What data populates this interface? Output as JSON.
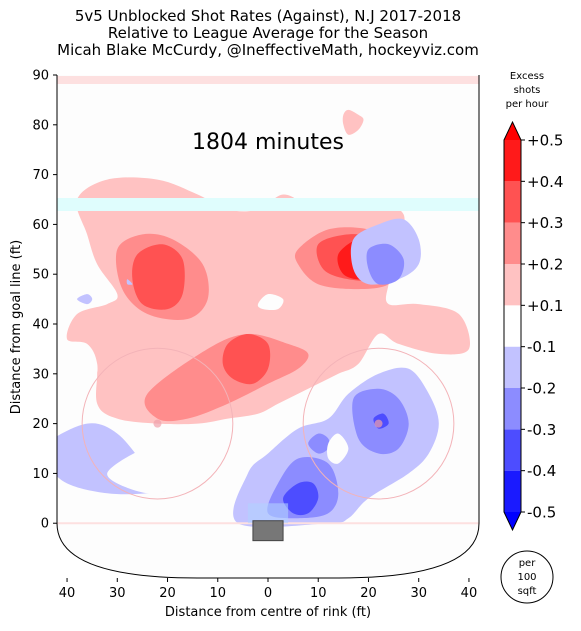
{
  "chart_data": {
    "type": "heatmap",
    "title_lines": [
      "5v5 Unblocked Shot Rates (Against), N.J 2017-2018",
      "Relative to League Average for the Season",
      "Micah Blake McCurdy, @IneffectiveMath, hockeyviz.com"
    ],
    "xlabel": "Distance from centre of rink (ft)",
    "ylabel": "Distance from goal line (ft)",
    "xlim": [
      -42,
      42
    ],
    "ylim": [
      -11,
      90
    ],
    "x_ticks": [
      -40,
      -30,
      -20,
      -10,
      0,
      10,
      20,
      30,
      40
    ],
    "x_tick_labels": [
      "40",
      "30",
      "20",
      "10",
      "0",
      "10",
      "20",
      "30",
      "40"
    ],
    "y_ticks": [
      0,
      10,
      20,
      30,
      40,
      50,
      60,
      70,
      80,
      90
    ],
    "y_tick_labels": [
      "0",
      "10",
      "20",
      "30",
      "40",
      "50",
      "60",
      "70",
      "80",
      "90"
    ],
    "annotation": "1804 minutes",
    "colorbar": {
      "title_lines": [
        "Excess",
        "shots",
        "per hour"
      ],
      "levels": [
        -0.5,
        -0.4,
        -0.3,
        -0.2,
        -0.1,
        0.1,
        0.2,
        0.3,
        0.4,
        0.5
      ],
      "tick_labels": [
        "-0.5",
        "-0.4",
        "-0.3",
        "-0.2",
        "-0.1",
        "+0.1",
        "+0.2",
        "+0.3",
        "+0.4",
        "+0.5"
      ],
      "colors": [
        "#1a1aff",
        "#4d4dff",
        "#8c8cff",
        "#c2c2ff",
        "#ffffff",
        "#ffc2c2",
        "#ff8c8c",
        "#ff5252",
        "#ff1a1a"
      ],
      "extend": "both",
      "extend_low_color": "#0000ff",
      "extend_high_color": "#ff0000"
    },
    "unit_badge_lines": [
      "per",
      "100",
      "sqft"
    ],
    "faceoff_circles": [
      {
        "x": -22,
        "y": 20,
        "r": 15
      },
      {
        "x": 22,
        "y": 20,
        "r": 15
      }
    ],
    "regions": [
      {
        "level": 0.15,
        "polygon": [
          [
            -38,
            65
          ],
          [
            -32,
            69
          ],
          [
            -22,
            69
          ],
          [
            -14,
            66
          ],
          [
            -8,
            63
          ],
          [
            -2,
            63
          ],
          [
            3,
            66
          ],
          [
            8,
            64
          ],
          [
            15,
            63
          ],
          [
            22,
            64
          ],
          [
            27,
            62
          ],
          [
            26,
            55
          ],
          [
            24,
            48
          ],
          [
            24,
            44
          ],
          [
            30,
            44
          ],
          [
            38,
            42
          ],
          [
            40,
            35
          ],
          [
            34,
            34
          ],
          [
            26,
            36
          ],
          [
            22,
            38
          ],
          [
            18,
            32
          ],
          [
            14,
            30
          ],
          [
            10,
            28
          ],
          [
            6,
            26
          ],
          [
            2,
            24
          ],
          [
            -2,
            22
          ],
          [
            -8,
            21
          ],
          [
            -14,
            20
          ],
          [
            -22,
            20
          ],
          [
            -30,
            21
          ],
          [
            -34,
            24
          ],
          [
            -34,
            32
          ],
          [
            -36,
            36
          ],
          [
            -40,
            37
          ],
          [
            -38,
            42
          ],
          [
            -32,
            44
          ],
          [
            -30,
            46
          ],
          [
            -34,
            52
          ],
          [
            -36,
            58
          ]
        ]
      },
      {
        "level": 0.15,
        "polygon": [
          [
            -26,
            26
          ],
          [
            -28,
            30
          ],
          [
            -30,
            33
          ],
          [
            -32,
            34
          ],
          [
            -34,
            30
          ],
          [
            -32,
            26
          ]
        ]
      },
      {
        "level": 0.15,
        "polygon": [
          [
            15,
            80
          ],
          [
            15,
            82
          ],
          [
            16,
            83
          ],
          [
            18,
            82
          ],
          [
            19,
            81
          ],
          [
            18,
            79
          ],
          [
            16,
            78
          ]
        ]
      },
      {
        "level": 0.25,
        "polygon": [
          [
            -30,
            55
          ],
          [
            -25,
            58
          ],
          [
            -19,
            57
          ],
          [
            -13,
            52
          ],
          [
            -12,
            45
          ],
          [
            -16,
            41
          ],
          [
            -24,
            42
          ],
          [
            -29,
            47
          ]
        ]
      },
      {
        "level": 0.25,
        "polygon": [
          [
            -24,
            26
          ],
          [
            -12,
            35
          ],
          [
            -4,
            38
          ],
          [
            4,
            36
          ],
          [
            8,
            34
          ],
          [
            6,
            31
          ],
          [
            0,
            28
          ],
          [
            -8,
            24
          ],
          [
            -16,
            21
          ],
          [
            -22,
            21
          ]
        ]
      },
      {
        "level": 0.25,
        "polygon": [
          [
            6,
            55
          ],
          [
            12,
            59
          ],
          [
            20,
            59
          ],
          [
            25,
            56
          ],
          [
            26,
            52
          ],
          [
            24,
            48
          ],
          [
            18,
            47
          ],
          [
            10,
            48
          ],
          [
            6,
            52
          ]
        ]
      },
      {
        "level": 0.35,
        "polygon": [
          [
            -26,
            54
          ],
          [
            -21,
            56
          ],
          [
            -17,
            53
          ],
          [
            -17,
            46
          ],
          [
            -20,
            43
          ],
          [
            -25,
            44
          ],
          [
            -27,
            49
          ]
        ]
      },
      {
        "level": 0.35,
        "polygon": [
          [
            -8,
            36
          ],
          [
            -4,
            38
          ],
          [
            0,
            36
          ],
          [
            0,
            31
          ],
          [
            -3,
            28
          ],
          [
            -7,
            29
          ],
          [
            -9,
            32
          ]
        ]
      },
      {
        "level": 0.35,
        "polygon": [
          [
            10,
            56
          ],
          [
            16,
            58
          ],
          [
            22,
            57
          ],
          [
            24,
            53
          ],
          [
            22,
            49
          ],
          [
            16,
            49
          ],
          [
            11,
            51
          ]
        ]
      },
      {
        "level": 0.45,
        "polygon": [
          [
            14,
            54
          ],
          [
            18,
            57
          ],
          [
            21,
            55
          ],
          [
            22,
            51
          ],
          [
            19,
            49
          ],
          [
            15,
            50
          ]
        ]
      },
      {
        "level": -0.15,
        "polygon": [
          [
            -44,
            16
          ],
          [
            -36,
            20
          ],
          [
            -30,
            18
          ],
          [
            -24,
            11
          ],
          [
            -20,
            7
          ],
          [
            -24,
            6
          ],
          [
            -32,
            6
          ],
          [
            -40,
            8
          ],
          [
            -44,
            12
          ]
        ]
      },
      {
        "level": -0.15,
        "polygon": [
          [
            -6,
            0
          ],
          [
            -4,
            10
          ],
          [
            0,
            14
          ],
          [
            6,
            19
          ],
          [
            12,
            21
          ],
          [
            16,
            26
          ],
          [
            22,
            30
          ],
          [
            28,
            31
          ],
          [
            32,
            26
          ],
          [
            34,
            20
          ],
          [
            32,
            14
          ],
          [
            28,
            10
          ],
          [
            20,
            5
          ],
          [
            16,
            1
          ],
          [
            12,
            0
          ]
        ]
      },
      {
        "level": -0.15,
        "polygon": [
          [
            17,
            57
          ],
          [
            22,
            60
          ],
          [
            27,
            61
          ],
          [
            30,
            57
          ],
          [
            30,
            52
          ],
          [
            26,
            49
          ],
          [
            20,
            48
          ],
          [
            17,
            51
          ]
        ]
      },
      {
        "level": -0.15,
        "polygon": [
          [
            -38,
            45
          ],
          [
            -36,
            46
          ],
          [
            -35,
            45
          ],
          [
            -36,
            44
          ]
        ]
      },
      {
        "level": -0.15,
        "polygon": [
          [
            -28,
            48
          ],
          [
            -28,
            49
          ],
          [
            -27,
            48
          ]
        ]
      },
      {
        "level": -0.25,
        "polygon": [
          [
            20,
            55
          ],
          [
            24,
            56
          ],
          [
            27,
            53
          ],
          [
            26,
            49
          ],
          [
            22,
            48
          ],
          [
            20,
            51
          ]
        ]
      },
      {
        "level": -0.25,
        "polygon": [
          [
            0,
            2
          ],
          [
            2,
            8
          ],
          [
            6,
            13
          ],
          [
            12,
            12
          ],
          [
            14,
            6
          ],
          [
            12,
            2
          ],
          [
            6,
            1
          ]
        ]
      },
      {
        "level": -0.25,
        "polygon": [
          [
            17,
            25
          ],
          [
            22,
            27
          ],
          [
            26,
            25
          ],
          [
            28,
            20
          ],
          [
            26,
            15
          ],
          [
            22,
            14
          ],
          [
            18,
            17
          ]
        ]
      },
      {
        "level": -0.25,
        "polygon": [
          [
            8,
            16
          ],
          [
            10,
            18
          ],
          [
            12,
            17
          ],
          [
            12,
            15
          ],
          [
            10,
            14
          ]
        ]
      },
      {
        "level": -0.35,
        "polygon": [
          [
            3,
            5
          ],
          [
            6,
            8
          ],
          [
            9,
            8
          ],
          [
            10,
            5
          ],
          [
            8,
            2
          ],
          [
            5,
            2
          ]
        ]
      },
      {
        "level": -0.35,
        "polygon": [
          [
            21,
            21
          ],
          [
            23,
            22
          ],
          [
            24,
            20
          ],
          [
            22,
            19
          ]
        ]
      }
    ],
    "holes": [
      {
        "polygon": [
          [
            -2,
            44
          ],
          [
            0,
            46
          ],
          [
            3,
            45
          ],
          [
            2,
            43
          ],
          [
            -1,
            43
          ]
        ]
      },
      {
        "polygon": [
          [
            12,
            16
          ],
          [
            14,
            18
          ],
          [
            16,
            15
          ],
          [
            14,
            12
          ],
          [
            12,
            13
          ]
        ]
      },
      {
        "polygon": [
          [
            -32,
            10
          ],
          [
            -22,
            16
          ],
          [
            -16,
            14
          ],
          [
            -18,
            8
          ],
          [
            -24,
            6
          ]
        ]
      }
    ],
    "net": {
      "x": [
        -3,
        3
      ],
      "y": [
        -3.5,
        0.5
      ]
    },
    "boundary_lines": [
      {
        "name": "end-zone-blue-line",
        "y": 64,
        "color": "#dffdfd"
      },
      {
        "name": "centre-line",
        "y": 89,
        "color": "#fde0e0"
      },
      {
        "name": "goal-line",
        "y": 0,
        "color": "#fde0e0"
      }
    ]
  }
}
